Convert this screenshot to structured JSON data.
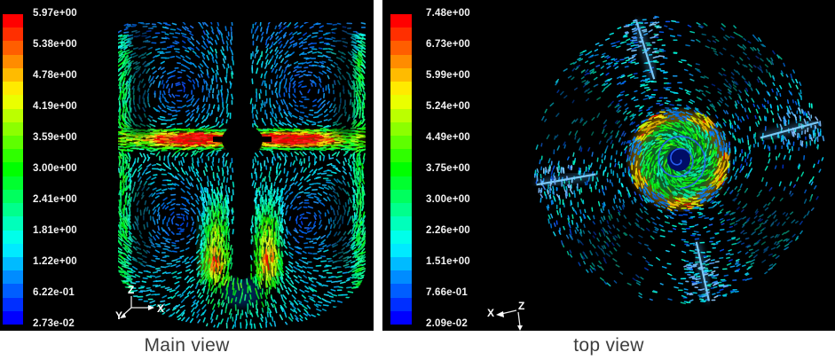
{
  "page": {
    "background": "#ffffff",
    "panel_background": "#000000",
    "caption_text_color": "#3d3d3d",
    "legend_text_color": "#f2f2f2",
    "colormap_top_color": "#ff0000",
    "colormap_bottom_color": "#0000ff",
    "baffle_streak_color": "#57b9ff"
  },
  "panels": [
    {
      "id": "main-view",
      "caption": "Main view",
      "legend_labels": [
        "5.97e+00",
        "5.38e+00",
        "4.78e+00",
        "4.19e+00",
        "3.59e+00",
        "3.00e+00",
        "2.41e+00",
        "1.81e+00",
        "1.22e+00",
        "6.22e-01",
        "2.73e-02"
      ],
      "axis_triad": {
        "up": "Z",
        "left": "Y",
        "right": "X"
      }
    },
    {
      "id": "top-view",
      "caption": "top view",
      "legend_labels": [
        "7.48e+00",
        "6.73e+00",
        "5.99e+00",
        "5.24e+00",
        "4.49e+00",
        "3.75e+00",
        "3.00e+00",
        "2.26e+00",
        "1.51e+00",
        "7.66e-01",
        "2.09e-02"
      ],
      "axis_triad": {
        "left": "X",
        "origin": "Z"
      }
    }
  ],
  "chart_data": [
    {
      "type": "vector_field",
      "title": "Main view",
      "view": "vertical mid-plane section of stirred tank, velocity vectors",
      "colormap": "rainbow, red = high, blue = low, 23 discrete bands",
      "colorbar_tick_labels": [
        "5.97e+00",
        "5.38e+00",
        "4.78e+00",
        "4.19e+00",
        "3.59e+00",
        "3.00e+00",
        "2.41e+00",
        "1.81e+00",
        "1.22e+00",
        "6.22e-01",
        "2.73e-02"
      ],
      "colorbar_tick_values": [
        5.97,
        5.38,
        4.78,
        4.19,
        3.59,
        3.0,
        2.41,
        1.81,
        1.22,
        0.622,
        0.0273
      ],
      "value_range": [
        0.0273,
        5.97
      ],
      "axes_shown": [
        "Z",
        "Y",
        "X"
      ],
      "features": [
        "radial impeller jet at mid-height with red/orange cores either side of shaft",
        "two yellow-green plumes descending beside shaft to dished bottom",
        "bright cyan flow along side walls",
        "four dark recirculation vortex cores"
      ]
    },
    {
      "type": "vector_field",
      "title": "top view",
      "view": "horizontal section of stirred tank, tangential swirl vectors",
      "colormap": "rainbow, red = high, blue = low, 23 discrete bands",
      "colorbar_tick_labels": [
        "7.48e+00",
        "6.73e+00",
        "5.99e+00",
        "5.24e+00",
        "4.49e+00",
        "3.75e+00",
        "3.00e+00",
        "2.26e+00",
        "1.51e+00",
        "7.66e-01",
        "2.09e-02"
      ],
      "colorbar_tick_values": [
        7.48,
        6.73,
        5.99,
        5.24,
        4.49,
        3.75,
        3.0,
        2.26,
        1.51,
        0.766,
        0.0209
      ],
      "value_range": [
        0.0209,
        7.48
      ],
      "axes_shown": [
        "X",
        "Z"
      ],
      "features": [
        "central impeller disc with yellow/orange lobed rim, green interior and dark blue vortex core",
        "outer annulus of dim cyan/teal tangential vectors",
        "four bright light-blue radial baffle streaks near rim"
      ]
    }
  ]
}
